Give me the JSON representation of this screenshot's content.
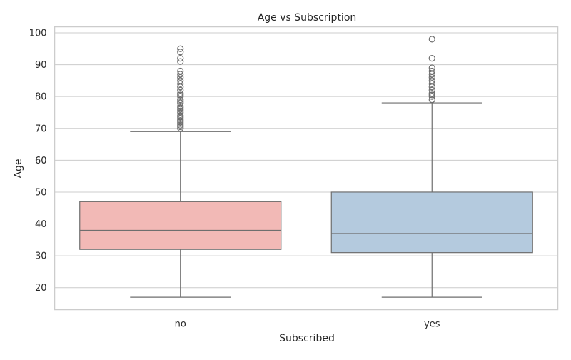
{
  "chart_data": {
    "type": "box",
    "title": "Age vs Subscription",
    "xlabel": "Subscribed",
    "ylabel": "Age",
    "categories": [
      "no",
      "yes"
    ],
    "ylim": [
      13.1,
      101.9
    ],
    "yticks": [
      20,
      30,
      40,
      50,
      60,
      70,
      80,
      90,
      100
    ],
    "grid": true,
    "boxes": [
      {
        "category": "no",
        "whisker_low": 17,
        "q1": 32,
        "median": 38,
        "q3": 47,
        "whisker_high": 69,
        "fill": "#f2b9b6",
        "outliers": [
          70,
          70.5,
          71,
          71.5,
          72,
          72.5,
          73,
          73.5,
          74,
          75,
          75.5,
          76,
          76.5,
          77,
          78,
          78.5,
          79,
          80,
          80.5,
          81,
          82,
          83,
          84,
          85,
          86,
          87,
          88,
          91,
          92,
          94,
          95
        ]
      },
      {
        "category": "yes",
        "whisker_low": 17,
        "q1": 31,
        "median": 37,
        "q3": 50,
        "whisker_high": 78,
        "fill": "#b4cade",
        "outliers": [
          79,
          80,
          80.5,
          81,
          82,
          83,
          84,
          85,
          86,
          87,
          88,
          89,
          92,
          98
        ]
      }
    ],
    "colors": {
      "line": "#6e6e6e",
      "grid": "#cccccc",
      "frame": "#cccccc"
    }
  }
}
